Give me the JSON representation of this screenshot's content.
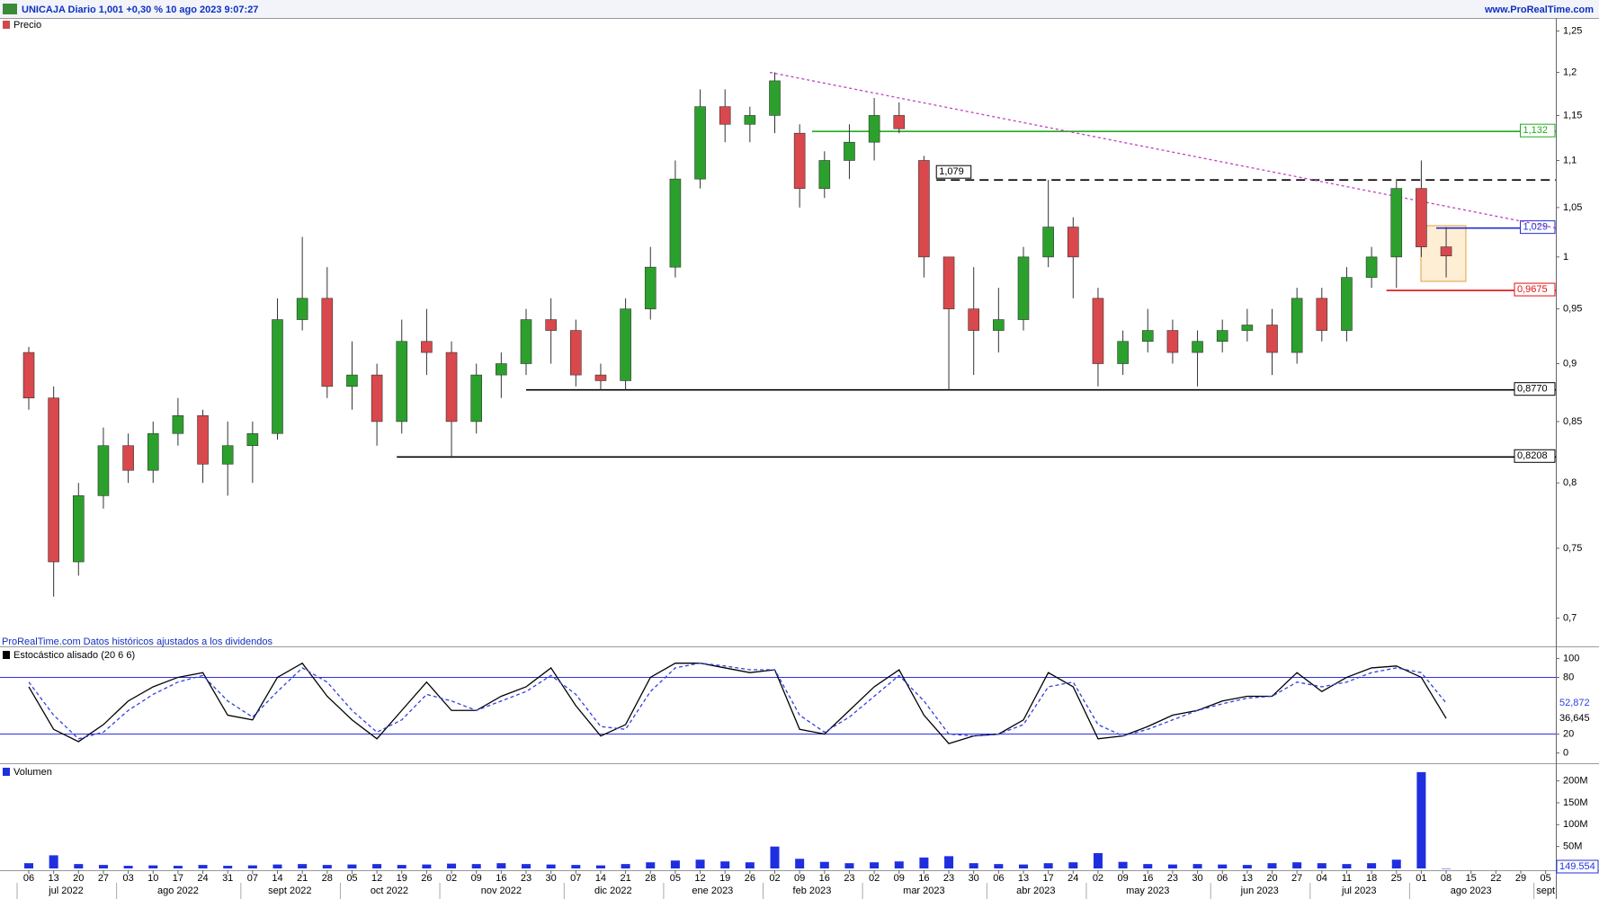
{
  "header": {
    "title": "UNICAJA Diario 1,001 +0,30 % 10 ago 2023 9:07:27",
    "site": "www.ProRealTime.com"
  },
  "chart_data": [
    {
      "type": "candlestick",
      "legend": "Precio",
      "note": "ProRealTime.com Datos históricos ajustados a los dividendos",
      "log": true,
      "ylim": [
        0.685,
        1.255
      ],
      "yticks": [
        {
          "value": 0.7,
          "label": "0,7"
        },
        {
          "value": 0.75,
          "label": "0,75"
        },
        {
          "value": 0.8,
          "label": "0,8"
        },
        {
          "value": 0.85,
          "label": "0,85"
        },
        {
          "value": 0.9,
          "label": "0,9"
        },
        {
          "value": 0.95,
          "label": "0,95"
        },
        1,
        {
          "value": 1.05,
          "label": "1,05"
        },
        {
          "value": 1.1,
          "label": "1,1"
        },
        {
          "value": 1.15,
          "label": "1,15"
        },
        {
          "value": 1.2,
          "label": "1,2"
        },
        {
          "value": 1.25,
          "label": "1,25"
        }
      ],
      "up_color": "#2ca02c",
      "down_color": "#d9484c",
      "open": [
        0.91,
        0.87,
        0.74,
        0.79,
        0.83,
        0.81,
        0.84,
        0.855,
        0.815,
        0.83,
        0.84,
        0.94,
        0.96,
        0.88,
        0.89,
        0.85,
        0.92,
        0.91,
        0.85,
        0.89,
        0.9,
        0.94,
        0.93,
        0.89,
        0.885,
        0.95,
        0.99,
        1.08,
        1.16,
        1.14,
        1.15,
        1.13,
        1.07,
        1.1,
        1.12,
        1.15,
        1.1,
        1.0,
        0.95,
        0.93,
        0.94,
        1.0,
        1.03,
        0.96,
        0.9,
        0.92,
        0.93,
        0.91,
        0.92,
        0.93,
        0.935,
        0.91,
        0.96,
        0.93,
        0.98,
        1.0,
        1.07,
        1.01,
        null,
        null,
        null,
        null
      ],
      "high": [
        0.915,
        0.88,
        0.8,
        0.845,
        0.84,
        0.85,
        0.87,
        0.86,
        0.85,
        0.85,
        0.96,
        1.02,
        0.99,
        0.92,
        0.9,
        0.94,
        0.95,
        0.92,
        0.9,
        0.91,
        0.95,
        0.96,
        0.94,
        0.9,
        0.96,
        1.01,
        1.1,
        1.18,
        1.18,
        1.16,
        1.2,
        1.14,
        1.11,
        1.14,
        1.17,
        1.165,
        1.105,
        1.0,
        0.99,
        0.97,
        1.01,
        1.079,
        1.04,
        0.97,
        0.93,
        0.95,
        0.94,
        0.93,
        0.94,
        0.95,
        0.95,
        0.97,
        0.97,
        0.99,
        1.01,
        1.08,
        1.1,
        1.03,
        null,
        null,
        null,
        null
      ],
      "low": [
        0.86,
        0.715,
        0.73,
        0.78,
        0.8,
        0.8,
        0.83,
        0.8,
        0.79,
        0.8,
        0.835,
        0.93,
        0.87,
        0.86,
        0.83,
        0.84,
        0.89,
        0.82,
        0.84,
        0.87,
        0.89,
        0.9,
        0.88,
        0.877,
        0.877,
        0.94,
        0.98,
        1.07,
        1.12,
        1.12,
        1.13,
        1.05,
        1.06,
        1.08,
        1.1,
        1.13,
        0.98,
        0.877,
        0.89,
        0.91,
        0.93,
        0.99,
        0.96,
        0.88,
        0.89,
        0.91,
        0.9,
        0.88,
        0.91,
        0.92,
        0.89,
        0.9,
        0.92,
        0.92,
        0.97,
        0.97,
        1.0,
        0.98,
        null,
        null,
        null,
        null
      ],
      "close": [
        0.87,
        0.74,
        0.79,
        0.83,
        0.81,
        0.84,
        0.855,
        0.815,
        0.83,
        0.84,
        0.94,
        0.96,
        0.88,
        0.89,
        0.85,
        0.92,
        0.91,
        0.85,
        0.89,
        0.9,
        0.94,
        0.93,
        0.89,
        0.885,
        0.95,
        0.99,
        1.08,
        1.16,
        1.14,
        1.15,
        1.19,
        1.07,
        1.1,
        1.12,
        1.15,
        1.135,
        1.0,
        0.95,
        0.93,
        0.94,
        1.0,
        1.03,
        1.0,
        0.9,
        0.92,
        0.93,
        0.91,
        0.92,
        0.93,
        0.935,
        0.91,
        0.96,
        0.93,
        0.98,
        1.0,
        1.07,
        1.01,
        1.001,
        null,
        null,
        null,
        null
      ],
      "levels": [
        {
          "value": 1.132,
          "label": "1,132",
          "color": "#22aa22",
          "style": "solid"
        },
        {
          "value": 1.079,
          "label": "1,079",
          "color": "#000000",
          "style": "dashed"
        },
        {
          "value": 1.029,
          "label": "1,029",
          "color": "#1f2fd0",
          "style": "solid"
        },
        {
          "value": 0.9675,
          "label": "0,9675",
          "color": "#e01010",
          "style": "solid"
        },
        {
          "value": 0.877,
          "label": "0,8770",
          "color": "#000000",
          "style": "solid"
        },
        {
          "value": 0.8208,
          "label": "0,8208",
          "color": "#000000",
          "style": "solid"
        }
      ],
      "trendline": {
        "values": [
          1.2,
          1.029
        ],
        "color": "#c040c0"
      }
    },
    {
      "type": "line",
      "legend": "Estocástico alisado (20 6 6)",
      "ylim": [
        -8,
        108
      ],
      "yticks": [
        0,
        20,
        80,
        100
      ],
      "levels": [
        20,
        80
      ],
      "level_color": "#3030e0",
      "series": [
        {
          "name": "K",
          "color": "#000000",
          "dash": false,
          "last_label": "36,645",
          "values": [
            70,
            25,
            12,
            30,
            55,
            70,
            80,
            85,
            40,
            35,
            80,
            95,
            60,
            35,
            15,
            45,
            75,
            45,
            45,
            60,
            70,
            90,
            50,
            18,
            30,
            80,
            95,
            95,
            90,
            85,
            88,
            25,
            20,
            45,
            70,
            88,
            40,
            10,
            18,
            20,
            35,
            85,
            70,
            15,
            18,
            28,
            40,
            45,
            55,
            60,
            60,
            85,
            65,
            80,
            90,
            92,
            80,
            36.645,
            null,
            null,
            null,
            null
          ]
        },
        {
          "name": "D",
          "color": "#3040e0",
          "dash": true,
          "last_label": "52,872",
          "values": [
            75,
            40,
            15,
            22,
            45,
            62,
            75,
            82,
            55,
            38,
            65,
            90,
            75,
            45,
            22,
            35,
            62,
            55,
            45,
            55,
            65,
            82,
            62,
            28,
            25,
            65,
            90,
            95,
            92,
            88,
            88,
            40,
            22,
            38,
            60,
            82,
            55,
            20,
            18,
            20,
            30,
            70,
            75,
            30,
            18,
            25,
            35,
            45,
            52,
            58,
            60,
            75,
            70,
            75,
            85,
            90,
            85,
            52.872,
            null,
            null,
            null,
            null
          ]
        }
      ]
    },
    {
      "type": "bar",
      "legend": "Volumen",
      "color": "#1f2fe0",
      "ylim": [
        0,
        230000000
      ],
      "yticks": [
        {
          "value": 50000000,
          "label": "50M"
        },
        {
          "value": 100000000,
          "label": "100M"
        },
        {
          "value": 150000000,
          "label": "150M"
        },
        {
          "value": 200000000,
          "label": "200M"
        }
      ],
      "last_label": "149.554",
      "values": [
        12000000,
        30000000,
        10000000,
        8000000,
        6000000,
        7000000,
        6000000,
        8000000,
        6000000,
        7000000,
        9000000,
        10000000,
        8000000,
        9000000,
        10000000,
        8000000,
        9000000,
        11000000,
        10000000,
        12000000,
        10000000,
        9000000,
        8000000,
        7000000,
        10000000,
        14000000,
        18000000,
        20000000,
        16000000,
        14000000,
        50000000,
        22000000,
        15000000,
        12000000,
        14000000,
        16000000,
        25000000,
        28000000,
        12000000,
        10000000,
        9000000,
        12000000,
        14000000,
        35000000,
        15000000,
        10000000,
        9000000,
        10000000,
        9000000,
        8000000,
        12000000,
        14000000,
        12000000,
        10000000,
        12000000,
        20000000,
        220000000,
        149554,
        null,
        null,
        null,
        null
      ],
      "categories": [
        "06",
        "13",
        "20",
        "27",
        "03",
        "10",
        "17",
        "24",
        "31",
        "07",
        "14",
        "21",
        "28",
        "05",
        "12",
        "19",
        "26",
        "02",
        "09",
        "16",
        "23",
        "30",
        "07",
        "14",
        "21",
        "28",
        "05",
        "12",
        "19",
        "26",
        "02",
        "09",
        "16",
        "23",
        "02",
        "09",
        "16",
        "23",
        "30",
        "06",
        "13",
        "17",
        "24",
        "02",
        "09",
        "16",
        "23",
        "30",
        "06",
        "13",
        "20",
        "27",
        "04",
        "11",
        "18",
        "25",
        "01",
        "08",
        "15",
        "22",
        "29",
        "05"
      ],
      "months": [
        "jul 2022",
        "ago 2022",
        "sept 2022",
        "oct 2022",
        "nov 2022",
        "dic 2022",
        "ene 2023",
        "feb 2023",
        "mar 2023",
        "abr 2023",
        "may 2023",
        "jun 2023",
        "jul 2023",
        "ago 2023",
        "sept"
      ]
    }
  ]
}
